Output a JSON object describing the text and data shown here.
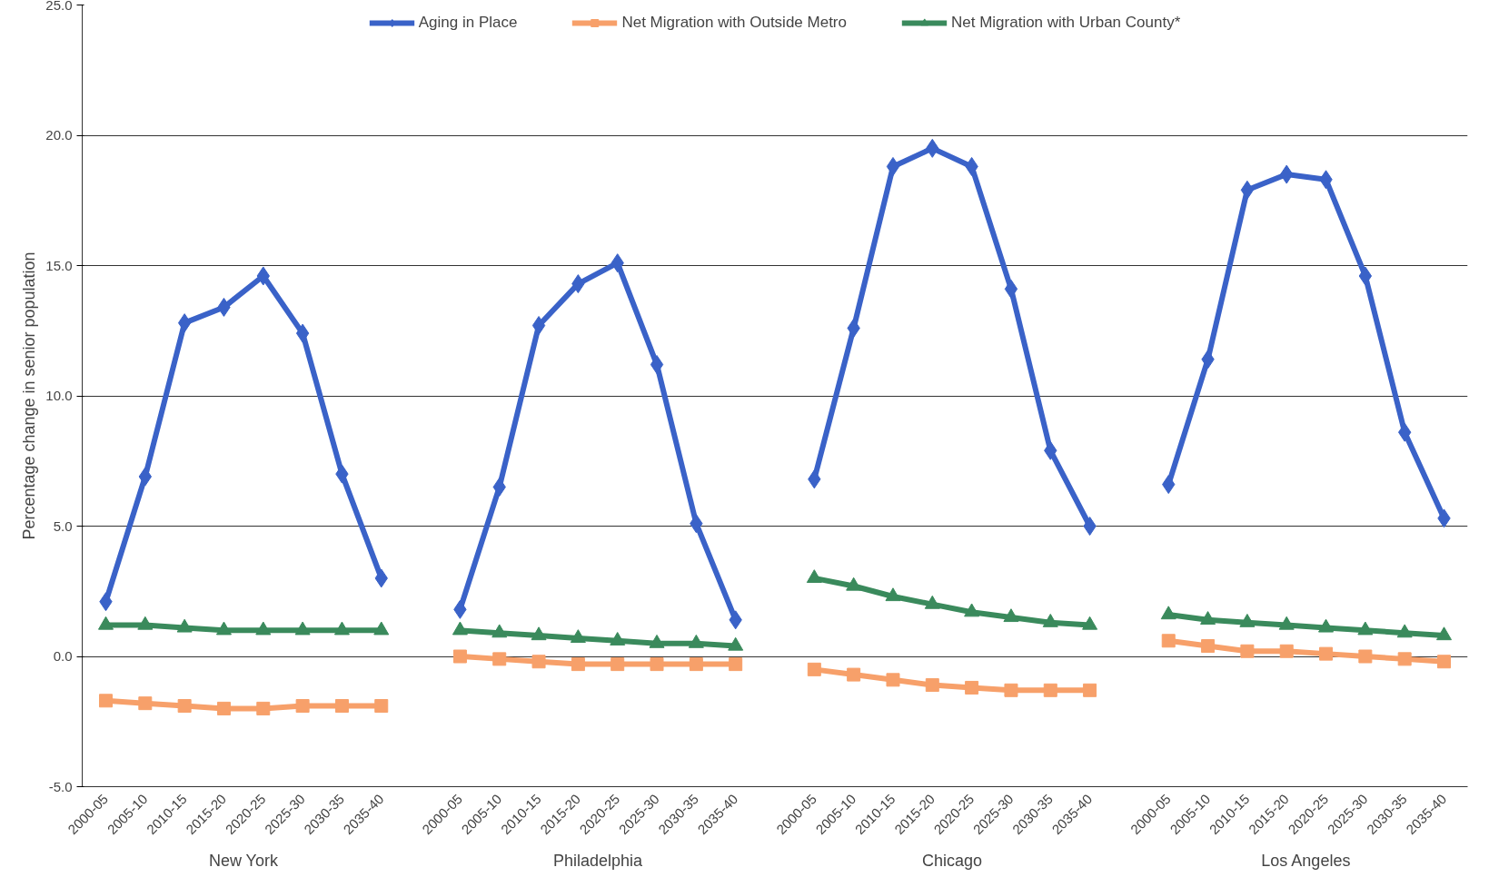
{
  "chart_data": {
    "type": "line",
    "ylabel": "Percentage change in senior population",
    "categories": [
      "2000-05",
      "2005-10",
      "2010-15",
      "2015-20",
      "2020-25",
      "2025-30",
      "2030-35",
      "2035-40",
      null,
      "2000-05",
      "2005-10",
      "2010-15",
      "2015-20",
      "2020-25",
      "2025-30",
      "2030-35",
      "2035-40",
      null,
      "2000-05",
      "2005-10",
      "2010-15",
      "2015-20",
      "2020-25",
      "2025-30",
      "2030-35",
      "2035-40",
      null,
      "2000-05",
      "2005-10",
      "2010-15",
      "2015-20",
      "2020-25",
      "2025-30",
      "2030-35",
      "2035-40"
    ],
    "series": [
      {
        "name": "Aging in Place",
        "color": "#3a62c8",
        "marker": "diamond",
        "values": [
          2.1,
          6.9,
          12.8,
          13.4,
          14.6,
          12.4,
          7.0,
          3.0,
          null,
          1.8,
          6.5,
          12.7,
          14.3,
          15.1,
          11.2,
          5.1,
          1.4,
          null,
          6.8,
          12.6,
          18.8,
          19.5,
          18.8,
          14.1,
          7.9,
          5.0,
          null,
          6.6,
          11.4,
          17.9,
          18.5,
          18.3,
          14.6,
          8.6,
          5.3
        ]
      },
      {
        "name": "Net Migration with Outside Metro",
        "color": "#f7a06a",
        "marker": "square",
        "values": [
          -1.7,
          -1.8,
          -1.9,
          -2.0,
          -2.0,
          -1.9,
          -1.9,
          -1.9,
          null,
          0.0,
          -0.1,
          -0.2,
          -0.3,
          -0.3,
          -0.3,
          -0.3,
          -0.3,
          null,
          -0.5,
          -0.7,
          -0.9,
          -1.1,
          -1.2,
          -1.3,
          -1.3,
          -1.3,
          null,
          0.6,
          0.4,
          0.2,
          0.2,
          0.1,
          0.0,
          -0.1,
          -0.2
        ]
      },
      {
        "name": "Net Migration with Urban County*",
        "color": "#3a8a5c",
        "marker": "triangle",
        "values": [
          1.2,
          1.2,
          1.1,
          1.0,
          1.0,
          1.0,
          1.0,
          1.0,
          null,
          1.0,
          0.9,
          0.8,
          0.7,
          0.6,
          0.5,
          0.5,
          0.4,
          null,
          3.0,
          2.7,
          2.3,
          2.0,
          1.7,
          1.5,
          1.3,
          1.2,
          null,
          1.6,
          1.4,
          1.3,
          1.2,
          1.1,
          1.0,
          0.9,
          0.8
        ]
      }
    ],
    "annotations": [
      "New York",
      "Philadelphia",
      "Chicago",
      "Los Angeles"
    ],
    "ylim": [
      -5,
      25
    ],
    "yticks": [
      {
        "value": -5,
        "label": "-5.0"
      },
      {
        "value": 0,
        "label": "0.0"
      },
      {
        "value": 5,
        "label": "5.0"
      },
      {
        "value": 10,
        "label": "10.0"
      },
      {
        "value": 15,
        "label": "15.0"
      },
      {
        "value": 20,
        "label": "20.0"
      },
      {
        "value": 25,
        "label": "25.0"
      }
    ],
    "grid": "y",
    "legend": "top"
  }
}
